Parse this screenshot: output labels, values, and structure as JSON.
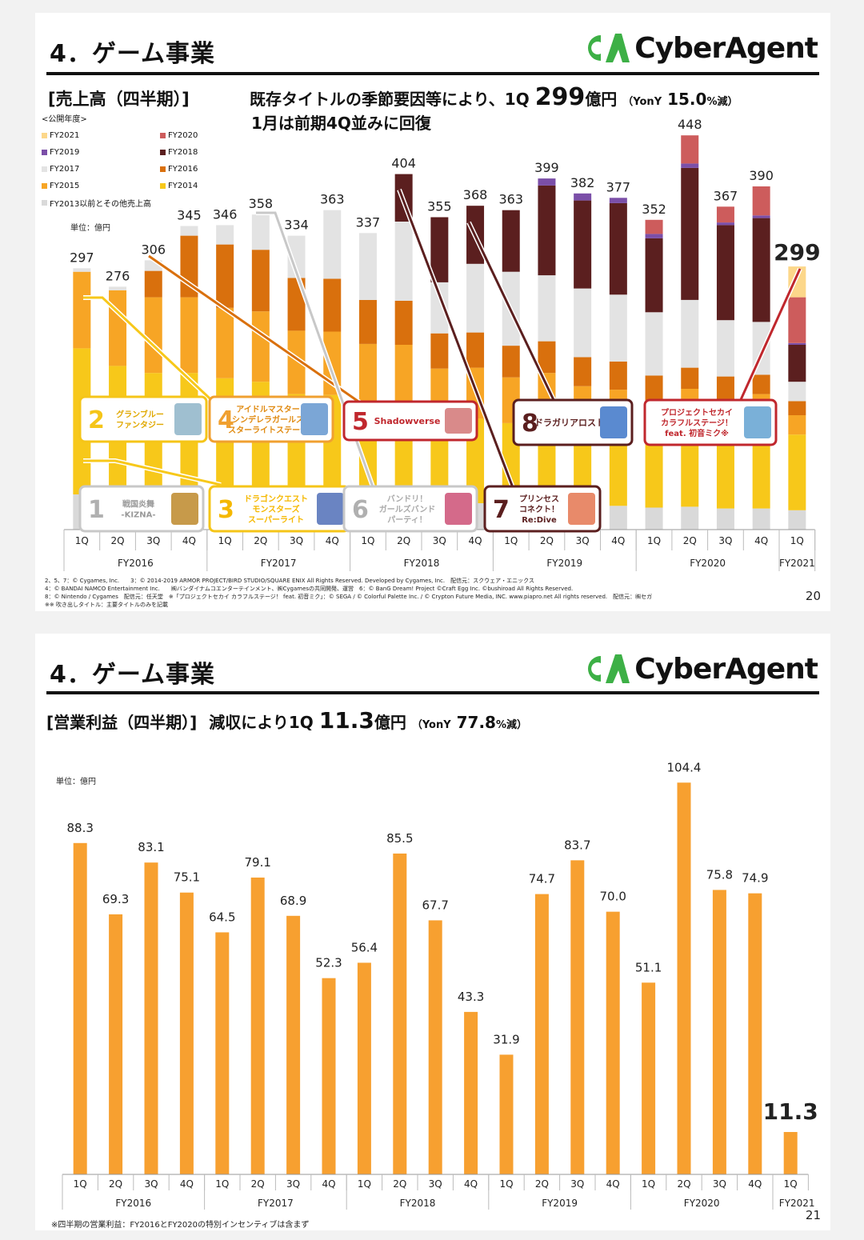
{
  "slide1": {
    "section_title": "4．ゲーム事業",
    "logo_text": "CyberAgent",
    "logo_mark": "CA",
    "headline_bracket": "[売上高（四半期）]",
    "headline_line1_a": "既存タイトルの季節要因等により、1Q",
    "headline_line1_value": "299",
    "headline_line1_unit": "億円",
    "headline_line1_yoy_a": "（YonY",
    "headline_line1_yoy_value": "15.0",
    "headline_line1_yoy_b": "%減）",
    "headline_line2": "1月は前期4Q並みに回復",
    "legend_head": "<公開年度>",
    "legend": [
      {
        "label": "FY2021",
        "color": "#fcd78a"
      },
      {
        "label": "FY2020",
        "color": "#cd5c5c"
      },
      {
        "label": "FY2019",
        "color": "#7b4fa8"
      },
      {
        "label": "FY2018",
        "color": "#5b1f1f"
      },
      {
        "label": "FY2017",
        "color": "#e3e3e3"
      },
      {
        "label": "FY2016",
        "color": "#d9700d"
      },
      {
        "label": "FY2015",
        "color": "#f7a525"
      },
      {
        "label": "FY2014",
        "color": "#f7c81a"
      },
      {
        "label": "FY2013以前とその他売上高",
        "color": "#d9d9d9"
      }
    ],
    "unit": "単位：億円",
    "page_number": "20",
    "credits": [
      "2、5、7：© Cygames, Inc.　　3：© 2014-2019 ARMOR PROJECT/BIRD STUDIO/SQUARE ENIX All Rights Reserved. Developed by Cygames, Inc.　配信元：スクウェア・エニックス",
      "4：© BANDAI NAMCO Entertainment Inc.　　㈱バンダイナムコエンターテインメント、㈱Cygamesの共同開発、運営　6：© BanG Dream! Project ©Craft Egg Inc. ©bushiroad All Rights Reserved.",
      "8：© Nintendo / Cygames　配信元：任天堂　※「プロジェクトセカイ カラフルステージ！ feat. 初音ミク」：© SEGA / © Colorful Palette Inc. / © Crypton Future Media, INC. www.piapro.net All rights reserved.　配信元：㈱セガ",
      "※※ 吹き出しタイトル：主要タイトルのみを記載"
    ],
    "callouts": [
      {
        "num": "1",
        "text": "戦国炎舞\n-KIZNA-",
        "border": "#c8c8c8",
        "num_color": "#b0b0b0",
        "text_color": "#999999"
      },
      {
        "num": "2",
        "text": "グランブルー\nファンタジー",
        "border": "#f5c518",
        "num_color": "#f5c518",
        "text_color": "#e0a800"
      },
      {
        "num": "3",
        "text": "ドラゴンクエスト\nモンスターズ\nスーパーライト",
        "border": "#f5c518",
        "num_color": "#f5b800",
        "text_color": "#f5b800"
      },
      {
        "num": "4",
        "text": "アイドルマスター\nシンデレラガールズ\nスターライトステージ",
        "border": "#f0a030",
        "num_color": "#f0a030",
        "text_color": "#e08a10"
      },
      {
        "num": "5",
        "text": "Shadowverse",
        "border": "#c0272d",
        "num_color": "#c0272d",
        "text_color": "#c0272d"
      },
      {
        "num": "6",
        "text": "バンドリ！\nガールズバンド\nパーティ！",
        "border": "#c8c8c8",
        "num_color": "#b0b0b0",
        "text_color": "#aaaaaa"
      },
      {
        "num": "7",
        "text": "プリンセス\nコネクト！\nRe:Dive",
        "border": "#5b1f1f",
        "num_color": "#5b1f1f",
        "text_color": "#5b1f1f"
      },
      {
        "num": "8",
        "text": "ドラガリアロスト",
        "border": "#5b1f1f",
        "num_color": "#5b1f1f",
        "text_color": "#5b1f1f"
      },
      {
        "num": "",
        "text": "プロジェクトセカイ\nカラフルステージ！\nfeat. 初音ミク※",
        "border": "#c0272d",
        "num_color": "#c0272d",
        "text_color": "#c0272d"
      }
    ]
  },
  "slide2": {
    "section_title": "4．ゲーム事業",
    "logo_text": "CyberAgent",
    "logo_mark": "CA",
    "headline_bracket": "[営業利益（四半期）]",
    "headline_a": "減収により1Q",
    "headline_value": "11.3",
    "headline_unit": "億円",
    "headline_yoy_a": "（YonY",
    "headline_yoy_value": "77.8",
    "headline_yoy_b": "%減）",
    "unit": "単位：億円",
    "page_number": "21",
    "footnote": "※四半期の営業利益：FY2016とFY2020の特別インセンティブは含まず"
  },
  "chart_data": [
    {
      "type": "bar",
      "stacked": true,
      "title": "売上高（四半期）",
      "unit": "億円",
      "categories": [
        "1Q",
        "2Q",
        "3Q",
        "4Q",
        "1Q",
        "2Q",
        "3Q",
        "4Q",
        "1Q",
        "2Q",
        "3Q",
        "4Q",
        "1Q",
        "2Q",
        "3Q",
        "4Q",
        "1Q",
        "2Q",
        "3Q",
        "4Q",
        "1Q"
      ],
      "groups": [
        {
          "label": "FY2016",
          "span": 4
        },
        {
          "label": "FY2017",
          "span": 4
        },
        {
          "label": "FY2018",
          "span": 4
        },
        {
          "label": "FY2019",
          "span": 4
        },
        {
          "label": "FY2020",
          "span": 4
        },
        {
          "label": "FY2021",
          "span": 1
        }
      ],
      "totals": [
        297,
        276,
        306,
        345,
        346,
        358,
        334,
        363,
        337,
        404,
        355,
        368,
        363,
        399,
        382,
        377,
        352,
        448,
        367,
        390,
        299
      ],
      "ylim": [
        0,
        460
      ],
      "series": [
        {
          "name": "FY2013以前とその他売上高",
          "color": "#d9d9d9",
          "values": [
            40,
            38,
            38,
            38,
            37,
            36,
            34,
            35,
            33,
            32,
            31,
            30,
            29,
            28,
            27,
            27,
            25,
            26,
            24,
            24,
            22
          ]
        },
        {
          "name": "FY2014",
          "color": "#f7c81a",
          "values": [
            166,
            148,
            140,
            140,
            135,
            132,
            120,
            118,
            112,
            110,
            96,
            96,
            92,
            96,
            88,
            86,
            82,
            90,
            84,
            92,
            86
          ]
        },
        {
          "name": "FY2015",
          "color": "#f7a525",
          "values": [
            87,
            86,
            86,
            86,
            80,
            80,
            72,
            72,
            66,
            68,
            56,
            58,
            52,
            54,
            48,
            46,
            40,
            44,
            38,
            38,
            22
          ]
        },
        {
          "name": "FY2016",
          "color": "#d9700d",
          "values": [
            0,
            0,
            30,
            70,
            72,
            70,
            60,
            60,
            50,
            50,
            40,
            40,
            36,
            36,
            33,
            32,
            28,
            24,
            28,
            22,
            16
          ]
        },
        {
          "name": "FY2017",
          "color": "#e3e3e3",
          "values": [
            4,
            4,
            12,
            11,
            22,
            40,
            48,
            78,
            76,
            90,
            58,
            78,
            84,
            75,
            78,
            76,
            72,
            77,
            64,
            60,
            22
          ]
        },
        {
          "name": "FY2018",
          "color": "#5b1f1f",
          "values": [
            0,
            0,
            0,
            0,
            0,
            0,
            0,
            0,
            0,
            54,
            74,
            66,
            70,
            102,
            100,
            104,
            84,
            150,
            108,
            118,
            42
          ]
        },
        {
          "name": "FY2019",
          "color": "#7b4fa8",
          "values": [
            0,
            0,
            0,
            0,
            0,
            0,
            0,
            0,
            0,
            0,
            0,
            0,
            0,
            8,
            8,
            6,
            5,
            5,
            3,
            3,
            2
          ]
        },
        {
          "name": "FY2020",
          "color": "#cd5c5c",
          "values": [
            0,
            0,
            0,
            0,
            0,
            0,
            0,
            0,
            0,
            0,
            0,
            0,
            0,
            0,
            0,
            0,
            16,
            32,
            18,
            33,
            52
          ]
        },
        {
          "name": "FY2021",
          "color": "#fcd78a",
          "values": [
            0,
            0,
            0,
            0,
            0,
            0,
            0,
            0,
            0,
            0,
            0,
            0,
            0,
            0,
            0,
            0,
            0,
            0,
            0,
            0,
            35
          ]
        }
      ]
    },
    {
      "type": "bar",
      "title": "営業利益（四半期）",
      "unit": "億円",
      "categories": [
        "1Q",
        "2Q",
        "3Q",
        "4Q",
        "1Q",
        "2Q",
        "3Q",
        "4Q",
        "1Q",
        "2Q",
        "3Q",
        "4Q",
        "1Q",
        "2Q",
        "3Q",
        "4Q",
        "1Q",
        "2Q",
        "3Q",
        "4Q",
        "1Q"
      ],
      "groups": [
        {
          "label": "FY2016",
          "span": 4
        },
        {
          "label": "FY2017",
          "span": 4
        },
        {
          "label": "FY2018",
          "span": 4
        },
        {
          "label": "FY2019",
          "span": 4
        },
        {
          "label": "FY2020",
          "span": 4
        },
        {
          "label": "FY2021",
          "span": 1
        }
      ],
      "values": [
        88.3,
        69.3,
        83.1,
        75.1,
        64.5,
        79.1,
        68.9,
        52.3,
        56.4,
        85.5,
        67.7,
        43.3,
        31.9,
        74.7,
        83.7,
        70.0,
        51.1,
        104.4,
        75.8,
        74.9,
        11.3
      ],
      "value_labels": [
        "88.3",
        "69.3",
        "83.1",
        "75.1",
        "64.5",
        "79.1",
        "68.9",
        "52.3",
        "56.4",
        "85.5",
        "67.7",
        "43.3",
        "31.9",
        "74.7",
        "83.7",
        "70.0",
        "51.1",
        "104.4",
        "75.8",
        "74.9",
        "11.3"
      ],
      "color": "#f7a030",
      "ylim": [
        0,
        110
      ]
    }
  ]
}
